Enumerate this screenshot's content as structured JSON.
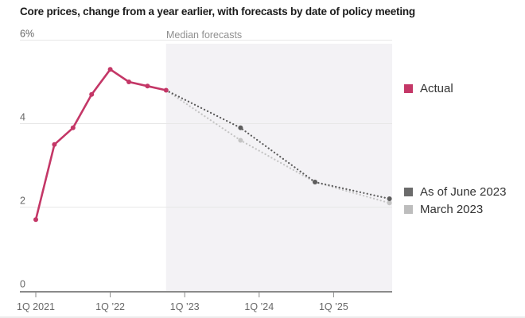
{
  "title": "Core prices, change from a year earlier, with forecasts by date of policy meeting",
  "chart_data": {
    "type": "line",
    "title": "Core prices, change from a year earlier, with forecasts by date of policy meeting",
    "forecast_label": "Median forecasts",
    "x_unit": "quarters since 1Q 2021",
    "ylim": [
      0,
      6
    ],
    "grid": true,
    "y_ticks": [
      {
        "value": 0,
        "label": "0"
      },
      {
        "value": 2,
        "label": "2"
      },
      {
        "value": 4,
        "label": "4"
      },
      {
        "value": 6,
        "label": "6%"
      }
    ],
    "x_ticks": [
      {
        "q": 0,
        "label": "1Q 2021"
      },
      {
        "q": 4,
        "label": "1Q ’22"
      },
      {
        "q": 8,
        "label": "1Q ’23"
      },
      {
        "q": 12,
        "label": "1Q ’24"
      },
      {
        "q": 16,
        "label": "1Q ’25"
      }
    ],
    "forecast_region": {
      "start_q": 7,
      "color": "#f3f2f5"
    },
    "series": [
      {
        "name": "March 2023",
        "style": "dotted",
        "color": "#c4c4c4",
        "width": 2.2,
        "marker_r": 3,
        "marker_skip_first": true,
        "quarters": [
          7,
          11,
          15,
          19
        ],
        "values": [
          4.8,
          3.6,
          2.6,
          2.1
        ]
      },
      {
        "name": "As of June 2023",
        "style": "dotted",
        "color": "#5d5d5d",
        "width": 2.2,
        "marker_r": 3,
        "marker_skip_first": true,
        "quarters": [
          7,
          11,
          15,
          19
        ],
        "values": [
          4.8,
          3.9,
          2.6,
          2.2
        ]
      },
      {
        "name": "Actual",
        "style": "solid",
        "color": "#c43767",
        "width": 2.6,
        "marker_r": 3,
        "marker_skip_first": false,
        "quarters": [
          0,
          1,
          2,
          3,
          4,
          5,
          6,
          7
        ],
        "values": [
          1.7,
          3.5,
          3.9,
          4.7,
          5.3,
          5.0,
          4.9,
          4.8
        ]
      }
    ]
  },
  "legend": {
    "items": [
      {
        "label": "Actual",
        "color": "#c43767"
      },
      {
        "label": "As of June 2023",
        "color": "#6b6b6b"
      },
      {
        "label": "March 2023",
        "color": "#bdbdbd"
      }
    ]
  }
}
